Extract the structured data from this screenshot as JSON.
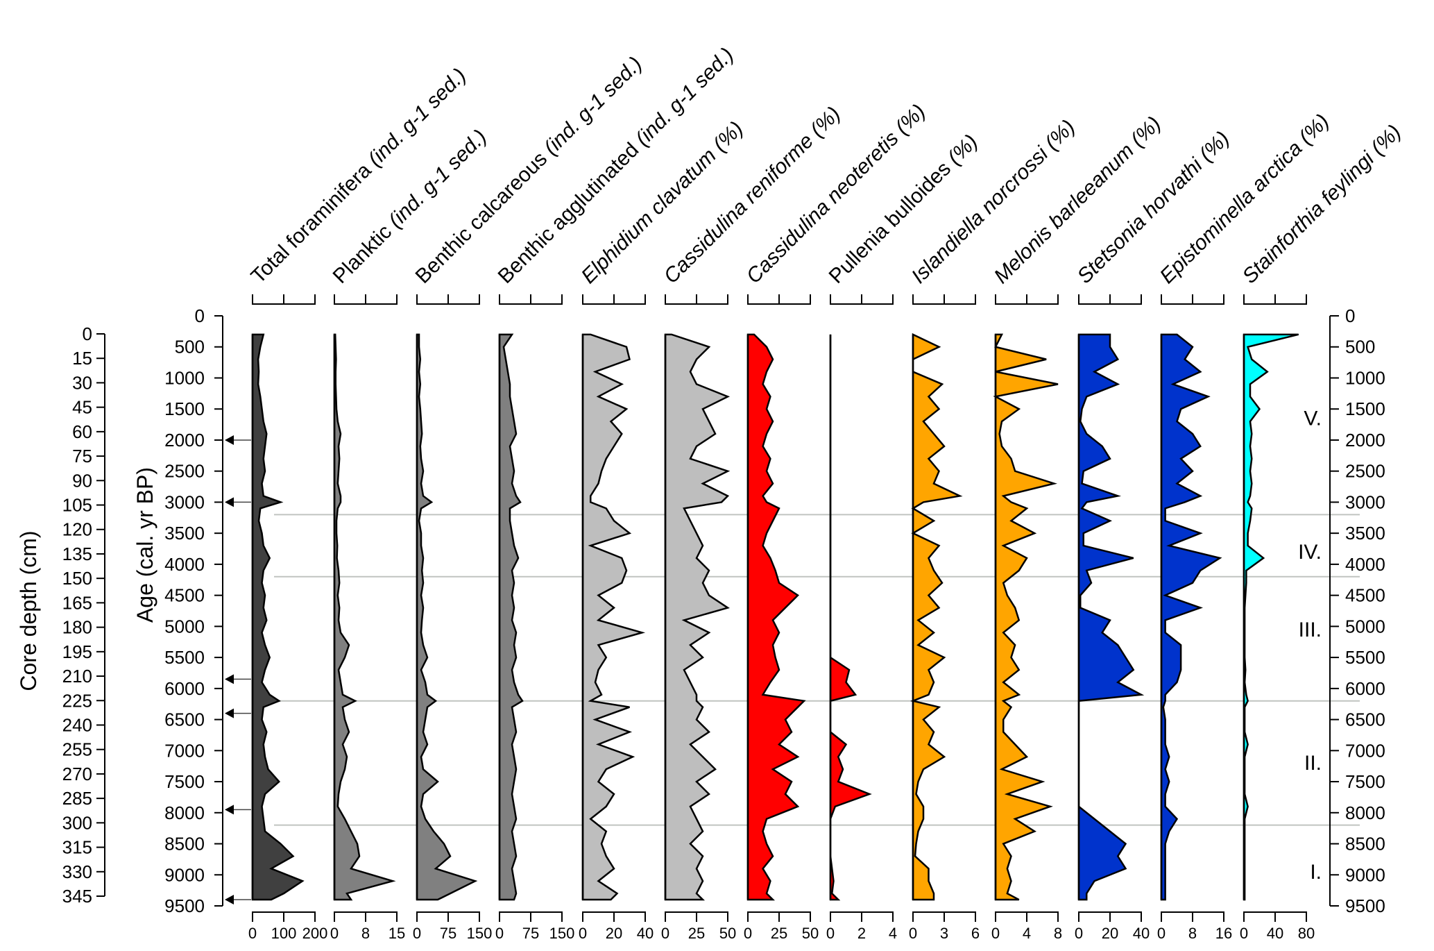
{
  "chart_data": {
    "type": "area",
    "title": "",
    "left_axes": [
      {
        "label": "Core depth (cm)",
        "ticks": [
          0,
          15,
          30,
          45,
          60,
          75,
          90,
          105,
          120,
          135,
          150,
          165,
          180,
          195,
          210,
          225,
          240,
          255,
          270,
          285,
          300,
          315,
          330,
          345
        ]
      },
      {
        "label": "Age (cal. yr BP)",
        "ticks": [
          0,
          500,
          1000,
          1500,
          2000,
          2500,
          3000,
          3500,
          4000,
          4500,
          5000,
          5500,
          6000,
          6500,
          7000,
          7500,
          8000,
          8500,
          9000,
          9500
        ]
      }
    ],
    "right_axis": {
      "label": "Age (cal. yr BP)",
      "ticks": [
        0,
        500,
        1000,
        1500,
        2000,
        2500,
        3000,
        3500,
        4000,
        4500,
        5000,
        5500,
        6000,
        6500,
        7000,
        7500,
        8000,
        8500,
        9000,
        9500
      ]
    },
    "age_range": [
      0,
      9500
    ],
    "age_markers": [
      2000,
      3000,
      5850,
      6400,
      7950,
      9400
    ],
    "zone_boundaries": [
      3200,
      4200,
      6200,
      8200
    ],
    "zones": [
      {
        "name": "V.",
        "age_center": 1650
      },
      {
        "name": "IV.",
        "age_center": 3800
      },
      {
        "name": "III.",
        "age_center": 5050
      },
      {
        "name": "II.",
        "age_center": 7200
      },
      {
        "name": "I.",
        "age_center": 8950
      }
    ],
    "ages": [
      300,
      500,
      700,
      900,
      1100,
      1300,
      1500,
      1700,
      1900,
      2100,
      2300,
      2500,
      2700,
      2900,
      3000,
      3100,
      3300,
      3500,
      3700,
      3900,
      4100,
      4300,
      4500,
      4700,
      4900,
      5100,
      5300,
      5500,
      5700,
      5900,
      6100,
      6200,
      6300,
      6500,
      6700,
      6900,
      7100,
      7300,
      7500,
      7700,
      7900,
      8100,
      8300,
      8500,
      8700,
      8900,
      9100,
      9300,
      9400
    ],
    "series": [
      {
        "name": "Total foraminifera",
        "unit": "(ind. g-1 sed.)",
        "italic": false,
        "color": "#404040",
        "xlim": [
          0,
          200
        ],
        "ticks": [
          "0",
          "100",
          "200"
        ],
        "values": [
          35,
          25,
          18,
          20,
          18,
          25,
          30,
          35,
          45,
          40,
          35,
          40,
          30,
          35,
          90,
          25,
          20,
          30,
          35,
          55,
          35,
          30,
          40,
          35,
          45,
          30,
          40,
          55,
          40,
          30,
          55,
          85,
          35,
          30,
          45,
          35,
          40,
          50,
          85,
          40,
          30,
          35,
          40,
          90,
          130,
          60,
          160,
          100,
          60
        ]
      },
      {
        "name": "Planktic",
        "unit": "(ind. g-1 sed.)",
        "italic": false,
        "color": "#808080",
        "xlim": [
          0,
          15
        ],
        "ticks": [
          "0",
          "8",
          "15"
        ],
        "values": [
          0.2,
          0.3,
          0.4,
          0.3,
          0.3,
          0.4,
          0.5,
          0.8,
          1.5,
          1.0,
          1.2,
          1.0,
          0.8,
          1.5,
          1.5,
          0.8,
          0.5,
          0.5,
          0.7,
          0.6,
          1.0,
          1.2,
          0.8,
          1.2,
          1.0,
          1.5,
          3.5,
          2.5,
          1.0,
          1.5,
          2.0,
          5.0,
          2.0,
          2.5,
          3.5,
          2.0,
          3.0,
          2.5,
          1.5,
          1.0,
          0.8,
          2.5,
          4.0,
          5.5,
          6.0,
          4.0,
          14.0,
          3.0,
          4.0
        ]
      },
      {
        "name": "Benthic calcareous",
        "unit": "(ind. g-1 sed.)",
        "italic": false,
        "color": "#808080",
        "xlim": [
          0,
          150
        ],
        "ticks": [
          "0",
          "75",
          "150"
        ],
        "values": [
          5,
          5,
          8,
          5,
          8,
          5,
          8,
          10,
          12,
          8,
          10,
          15,
          10,
          15,
          35,
          10,
          5,
          10,
          10,
          15,
          12,
          15,
          10,
          15,
          12,
          10,
          15,
          25,
          10,
          20,
          25,
          45,
          25,
          20,
          15,
          25,
          10,
          15,
          50,
          15,
          10,
          20,
          40,
          65,
          80,
          45,
          140,
          80,
          50
        ]
      },
      {
        "name": "Benthic agglutinated",
        "unit": "(ind. g-1 sed.)",
        "italic": false,
        "color": "#808080",
        "xlim": [
          0,
          150
        ],
        "ticks": [
          "0",
          "75",
          "150"
        ],
        "values": [
          30,
          10,
          15,
          20,
          25,
          25,
          30,
          35,
          40,
          25,
          30,
          35,
          30,
          40,
          50,
          25,
          25,
          30,
          35,
          45,
          30,
          35,
          30,
          35,
          30,
          40,
          35,
          40,
          30,
          35,
          45,
          55,
          30,
          35,
          40,
          30,
          35,
          40,
          35,
          30,
          35,
          40,
          30,
          35,
          40,
          30,
          35,
          40,
          35
        ]
      },
      {
        "name": "Elphidium clavatum",
        "unit": "(%)",
        "italic": true,
        "color": "#bebebe",
        "xlim": [
          0,
          40
        ],
        "ticks": [
          "0",
          "20",
          "40"
        ],
        "values": [
          5,
          28,
          30,
          8,
          25,
          10,
          28,
          18,
          25,
          20,
          15,
          12,
          10,
          5,
          5,
          15,
          20,
          30,
          5,
          25,
          28,
          25,
          10,
          20,
          10,
          38,
          10,
          15,
          10,
          8,
          12,
          5,
          30,
          8,
          30,
          10,
          32,
          15,
          10,
          20,
          15,
          5,
          15,
          12,
          15,
          20,
          10,
          22,
          18
        ]
      },
      {
        "name": "Cassidulina reniforme",
        "unit": "(%)",
        "italic": true,
        "color": "#bebebe",
        "xlim": [
          0,
          50
        ],
        "ticks": [
          "0",
          "25",
          "50"
        ],
        "values": [
          5,
          35,
          25,
          20,
          25,
          50,
          30,
          35,
          40,
          25,
          20,
          50,
          30,
          50,
          45,
          15,
          20,
          25,
          30,
          25,
          35,
          30,
          35,
          50,
          15,
          35,
          20,
          30,
          15,
          20,
          25,
          25,
          30,
          25,
          35,
          20,
          30,
          40,
          25,
          35,
          20,
          25,
          30,
          20,
          30,
          25,
          30,
          25,
          30
        ]
      },
      {
        "name": "Cassidulina neoteretis",
        "unit": "(%)",
        "italic": true,
        "color": "#ff0000",
        "xlim": [
          0,
          50
        ],
        "ticks": [
          "0",
          "25",
          "50"
        ],
        "values": [
          5,
          15,
          20,
          15,
          12,
          18,
          15,
          20,
          15,
          12,
          18,
          15,
          20,
          12,
          15,
          25,
          20,
          15,
          12,
          18,
          22,
          25,
          40,
          30,
          20,
          25,
          20,
          22,
          25,
          18,
          12,
          45,
          40,
          30,
          35,
          25,
          40,
          20,
          35,
          30,
          40,
          15,
          12,
          15,
          20,
          12,
          18,
          15,
          20
        ]
      },
      {
        "name": "Pullenia bulloides",
        "unit": "(%)",
        "italic": false,
        "color": "#ff0000",
        "xlim": [
          0,
          4
        ],
        "ticks": [
          "0",
          "2",
          "4"
        ],
        "values": [
          0,
          0,
          0,
          0,
          0,
          0,
          0,
          0,
          0,
          0,
          0,
          0,
          0,
          0,
          0,
          0,
          0,
          0,
          0,
          0,
          0,
          0,
          0,
          0,
          0,
          0,
          0,
          0,
          1.2,
          1.0,
          1.6,
          0,
          0,
          0,
          0,
          1.0,
          0.5,
          0.8,
          0.5,
          2.5,
          0.3,
          0,
          0,
          0,
          0,
          0.1,
          0.2,
          0.1,
          0.5
        ]
      },
      {
        "name": "Islandiella norcrossi",
        "unit": "(%)",
        "italic": true,
        "color": "#ffa500",
        "xlim": [
          0,
          6
        ],
        "ticks": [
          "0",
          "3",
          "6"
        ],
        "values": [
          0,
          2.5,
          0,
          0,
          2.8,
          1.5,
          2.5,
          1.0,
          2.0,
          3.0,
          1.5,
          2.5,
          2.0,
          4.5,
          1.0,
          0,
          2.0,
          0,
          2.5,
          1.5,
          2.0,
          2.8,
          1.5,
          2.5,
          0.5,
          2.0,
          0.5,
          3.0,
          1.5,
          2.0,
          1.5,
          0,
          2.5,
          1.0,
          2.0,
          1.5,
          3.0,
          1.0,
          0.5,
          0.3,
          1.0,
          1.0,
          0.5,
          0.3,
          0.2,
          1.5,
          1.5,
          2.0,
          2.0
        ]
      },
      {
        "name": "Melonis barleeanum",
        "unit": "(%)",
        "italic": true,
        "color": "#ffa500",
        "xlim": [
          0,
          8
        ],
        "ticks": [
          "0",
          "4",
          "8"
        ],
        "values": [
          0.8,
          0,
          6.5,
          0,
          8,
          0,
          3.0,
          0.8,
          0.5,
          0.8,
          2.0,
          2.5,
          7.5,
          1.0,
          2.0,
          4.0,
          2.0,
          5.0,
          1.0,
          4.0,
          3.0,
          1.0,
          1.5,
          2.5,
          3.0,
          1.0,
          2.5,
          2.0,
          3.0,
          1.0,
          3.0,
          1.0,
          2.0,
          1.0,
          1.0,
          2.5,
          4.0,
          0.8,
          6.0,
          1.5,
          7.0,
          2.5,
          5.0,
          1.0,
          2.0,
          1.5,
          2.0,
          1.5,
          3.0
        ]
      },
      {
        "name": "Stetsonia horvathi",
        "unit": "(%)",
        "italic": true,
        "color": "#0033cc",
        "xlim": [
          0,
          40
        ],
        "ticks": [
          "0",
          "20",
          "40"
        ],
        "values": [
          20,
          20,
          25,
          10,
          25,
          5,
          2,
          1,
          5,
          15,
          20,
          3,
          2,
          25,
          5,
          2,
          20,
          3,
          3,
          35,
          5,
          8,
          1,
          1,
          20,
          15,
          25,
          30,
          35,
          25,
          40,
          0,
          0,
          0,
          0,
          0,
          0,
          0,
          0,
          0,
          0,
          10,
          20,
          30,
          25,
          30,
          10,
          5,
          5
        ]
      },
      {
        "name": "Epistominella arctica",
        "unit": "(%)",
        "italic": true,
        "color": "#0033cc",
        "xlim": [
          0,
          16
        ],
        "ticks": [
          "0",
          "8",
          "16"
        ],
        "values": [
          4,
          8,
          6,
          10,
          3,
          12,
          5,
          4,
          8,
          10,
          5,
          8,
          4,
          10,
          6,
          1,
          1,
          10,
          2,
          15,
          10,
          8,
          1,
          10,
          1,
          1,
          5,
          5,
          5,
          4,
          1,
          1,
          0.5,
          1,
          1,
          1,
          2,
          1,
          2,
          1,
          1,
          4,
          2,
          1,
          1,
          1,
          1,
          1,
          1
        ]
      },
      {
        "name": "Stainforthia feylingi",
        "unit": "(%)",
        "italic": true,
        "color": "#00ffff",
        "xlim": [
          0,
          80
        ],
        "ticks": [
          "0",
          "40",
          "80"
        ],
        "values": [
          70,
          5,
          10,
          30,
          8,
          8,
          20,
          8,
          10,
          8,
          10,
          8,
          10,
          8,
          5,
          10,
          8,
          5,
          5,
          25,
          3,
          3,
          2,
          1,
          1,
          1,
          1,
          1,
          2,
          1,
          3,
          5,
          1,
          1,
          1,
          5,
          1,
          1,
          1,
          1,
          5,
          1,
          1,
          1,
          1,
          1,
          1,
          1,
          1
        ]
      }
    ]
  }
}
